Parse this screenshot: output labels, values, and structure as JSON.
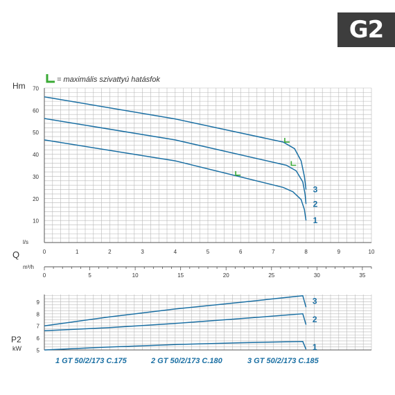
{
  "badge": "G2",
  "legend": {
    "text": "= maximális szivattyú hatásfok"
  },
  "chart_data": [
    {
      "type": "line",
      "ylabel": "Hm",
      "ylim": [
        0,
        70
      ],
      "yticks": [
        10,
        20,
        30,
        40,
        50,
        60,
        70
      ],
      "xlabel_flow": "Q",
      "x_ls_unit": "l/s",
      "x_ls_range": [
        0,
        10
      ],
      "x_ls_ticks": [
        0,
        1,
        2,
        3,
        4,
        5,
        6,
        7,
        8,
        9,
        10
      ],
      "x_m3h_unit": "m³/h",
      "x_m3h_range": [
        0,
        36
      ],
      "x_m3h_ticks": [
        0,
        5,
        10,
        15,
        20,
        25,
        30,
        35
      ],
      "grid": true,
      "series": [
        {
          "name": "1",
          "points": [
            [
              0,
              46.5
            ],
            [
              4,
              37
            ],
            [
              7.3,
              25
            ],
            [
              7.6,
              23
            ],
            [
              7.85,
              19.5
            ],
            [
              7.95,
              15
            ],
            [
              8.0,
              10
            ]
          ]
        },
        {
          "name": "2",
          "points": [
            [
              0,
              56.2
            ],
            [
              4,
              46.5
            ],
            [
              7.4,
              35
            ],
            [
              7.7,
              32.5
            ],
            [
              7.9,
              27.5
            ],
            [
              7.97,
              22
            ],
            [
              8.0,
              17.5
            ]
          ]
        },
        {
          "name": "3",
          "points": [
            [
              0,
              66
            ],
            [
              4,
              56
            ],
            [
              7.3,
              45.5
            ],
            [
              7.65,
              42.5
            ],
            [
              7.85,
              37
            ],
            [
              7.95,
              30
            ],
            [
              8.0,
              24
            ]
          ]
        }
      ],
      "efficiency_marks": [
        [
          5.85,
          30.5
        ],
        [
          7.35,
          45.5
        ],
        [
          7.55,
          35
        ]
      ]
    },
    {
      "type": "line",
      "ylabel": "P2",
      "yunit": "kW",
      "ylim": [
        5,
        9.6
      ],
      "yticks": [
        5,
        6,
        7,
        8,
        9
      ],
      "x_ls_range": [
        0,
        10
      ],
      "grid": true,
      "series": [
        {
          "name": "1",
          "points": [
            [
              0,
              5.0
            ],
            [
              2,
              5.25
            ],
            [
              4,
              5.45
            ],
            [
              6,
              5.6
            ],
            [
              7.9,
              5.7
            ],
            [
              8.0,
              5.05
            ]
          ]
        },
        {
          "name": "2",
          "points": [
            [
              0,
              6.6
            ],
            [
              2,
              6.85
            ],
            [
              4,
              7.2
            ],
            [
              6,
              7.6
            ],
            [
              7.9,
              8.0
            ],
            [
              8.0,
              7.1
            ]
          ]
        },
        {
          "name": "3",
          "points": [
            [
              0,
              7.0
            ],
            [
              2,
              7.75
            ],
            [
              4,
              8.4
            ],
            [
              6,
              8.95
            ],
            [
              7.9,
              9.5
            ],
            [
              8.0,
              8.55
            ]
          ]
        }
      ]
    }
  ],
  "models": [
    "1  GT 50/2/173 C.175",
    "2  GT 50/2/173 C.180",
    "3  GT 50/2/173 C.185"
  ]
}
